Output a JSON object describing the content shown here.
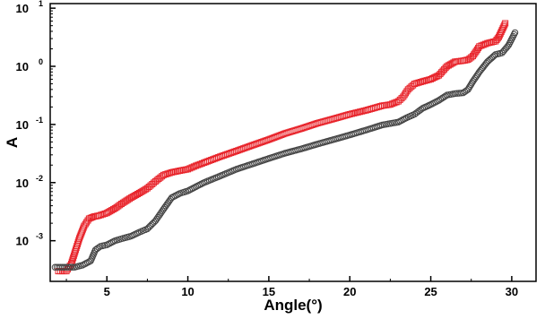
{
  "chart_data": {
    "type": "scatter",
    "xlabel": "Angle(°)",
    "ylabel": "A",
    "xlim": [
      1.5,
      31.5
    ],
    "ylim": [
      0.0002,
      12
    ],
    "y_scale": "log",
    "grid": false,
    "legend": "none",
    "x_ticks": [
      {
        "value": 5,
        "label": "5"
      },
      {
        "value": 10,
        "label": "10"
      },
      {
        "value": 15,
        "label": "15"
      },
      {
        "value": 20,
        "label": "20"
      },
      {
        "value": 25,
        "label": "25"
      },
      {
        "value": 30,
        "label": "30"
      }
    ],
    "y_ticks": [
      {
        "value": 0.001,
        "base": "10",
        "exp": "-3"
      },
      {
        "value": 0.01,
        "base": "10",
        "exp": "-2"
      },
      {
        "value": 0.1,
        "base": "10",
        "exp": "-1"
      },
      {
        "value": 1,
        "base": "10",
        "exp": "0"
      },
      {
        "value": 10,
        "base": "10",
        "exp": "1"
      }
    ],
    "series": [
      {
        "marker": "square",
        "color": "#e8242b",
        "x": [
          2.0,
          2.5,
          2.8,
          3.0,
          3.3,
          3.6,
          3.9,
          4.2,
          4.5,
          5.0,
          5.5,
          6.0,
          6.5,
          7.0,
          7.5,
          8.0,
          8.5,
          9.0,
          9.5,
          10.0,
          10.5,
          11.0,
          12.0,
          13.0,
          14.0,
          15.0,
          16.0,
          17.0,
          18.0,
          19.0,
          20.0,
          21.0,
          22.0,
          22.5,
          23.0,
          23.3,
          23.6,
          24.0,
          24.5,
          25.0,
          25.5,
          26.0,
          26.5,
          27.0,
          27.3,
          27.6,
          28.0,
          28.5,
          29.0,
          29.2,
          29.4,
          29.6
        ],
        "y": [
          0.0003,
          0.0003,
          0.0004,
          0.0006,
          0.0011,
          0.0018,
          0.0024,
          0.0026,
          0.0027,
          0.003,
          0.0036,
          0.0045,
          0.0055,
          0.0066,
          0.008,
          0.0105,
          0.0135,
          0.015,
          0.016,
          0.017,
          0.0195,
          0.022,
          0.028,
          0.035,
          0.044,
          0.055,
          0.07,
          0.085,
          0.105,
          0.125,
          0.15,
          0.175,
          0.21,
          0.22,
          0.25,
          0.3,
          0.4,
          0.5,
          0.55,
          0.6,
          0.7,
          1.0,
          1.2,
          1.25,
          1.3,
          1.5,
          2.2,
          2.5,
          2.7,
          3.2,
          4.2,
          5.5
        ]
      },
      {
        "marker": "circle",
        "color": "#444444",
        "x": [
          1.8,
          2.5,
          3.0,
          3.5,
          4.0,
          4.3,
          4.6,
          5.0,
          5.5,
          6.0,
          6.5,
          7.0,
          7.5,
          8.0,
          8.5,
          9.0,
          9.5,
          10.0,
          10.5,
          11.0,
          12.0,
          13.0,
          14.0,
          15.0,
          16.0,
          17.0,
          18.0,
          19.0,
          20.0,
          21.0,
          22.0,
          23.0,
          23.5,
          24.0,
          24.5,
          25.0,
          25.5,
          26.0,
          26.5,
          27.0,
          27.3,
          27.6,
          28.0,
          28.5,
          29.0,
          29.4,
          29.8,
          30.2
        ],
        "y": [
          0.00035,
          0.00035,
          0.00035,
          0.00038,
          0.00045,
          0.0007,
          0.0008,
          0.00085,
          0.001,
          0.0011,
          0.0012,
          0.0014,
          0.0016,
          0.0022,
          0.0035,
          0.0055,
          0.0065,
          0.0072,
          0.0085,
          0.01,
          0.013,
          0.017,
          0.021,
          0.026,
          0.032,
          0.038,
          0.046,
          0.055,
          0.066,
          0.08,
          0.098,
          0.11,
          0.13,
          0.15,
          0.19,
          0.22,
          0.26,
          0.32,
          0.34,
          0.35,
          0.4,
          0.55,
          0.8,
          1.2,
          1.6,
          1.7,
          2.3,
          3.8
        ]
      }
    ]
  }
}
